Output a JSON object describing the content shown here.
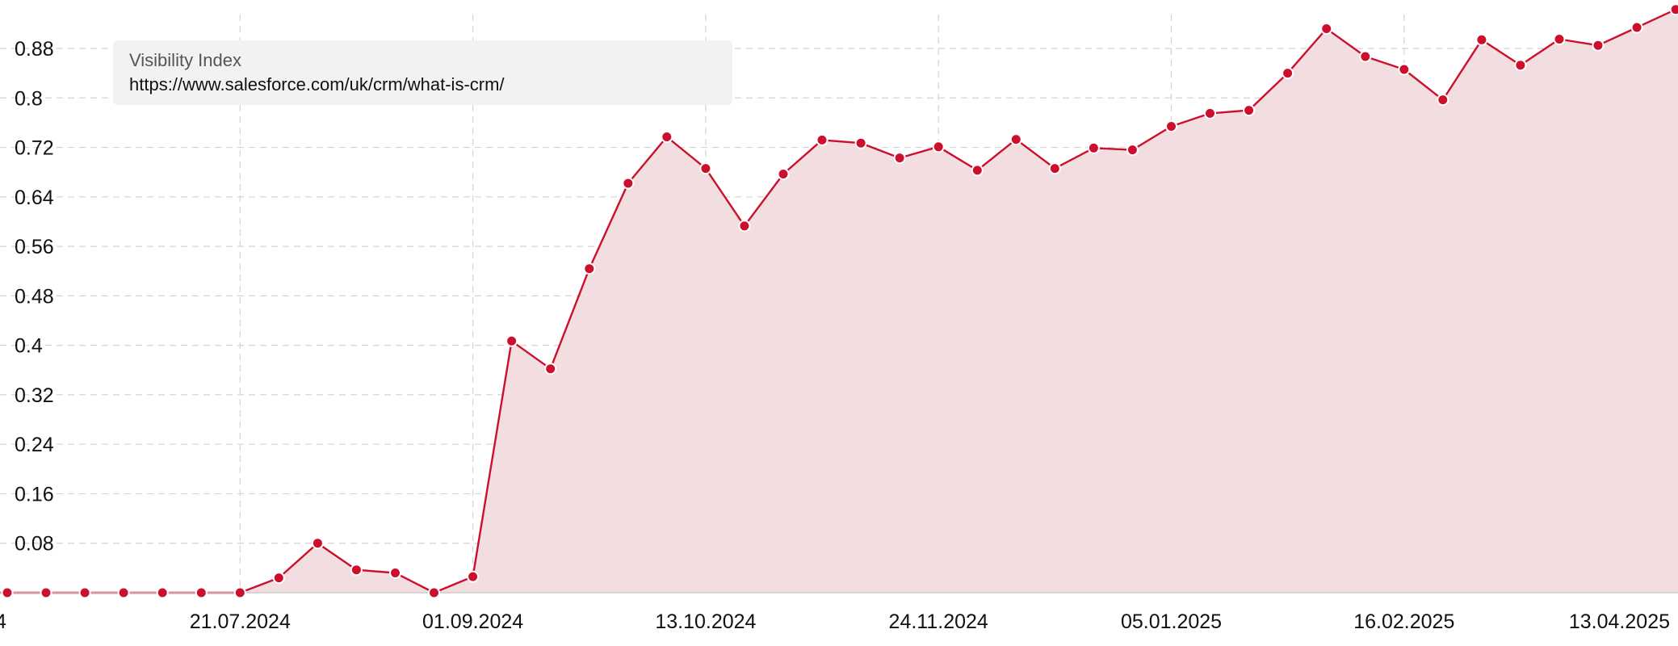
{
  "chart_data": {
    "type": "area",
    "ylim": [
      0,
      0.95
    ],
    "y_ticks": [
      "0.08",
      "0.16",
      "0.24",
      "0.32",
      "0.4",
      "0.48",
      "0.56",
      "0.64",
      "0.72",
      "0.8",
      "0.88"
    ],
    "x_ticks": [
      "21.07.2024",
      "01.09.2024",
      "13.10.2024",
      "24.11.2024",
      "05.01.2025",
      "16.02.2025",
      "13.04.2025"
    ],
    "x_cut_label": "4",
    "grid": true,
    "legend_placement": "top-left",
    "series": [
      {
        "name": "Visibility Index",
        "subtitle": "https://www.salesforce.com/uk/crm/what-is-crm/",
        "x": [
          "09.06.2024",
          "16.06.2024",
          "23.06.2024",
          "30.06.2024",
          "07.07.2024",
          "14.07.2024",
          "21.07.2024",
          "28.07.2024",
          "04.08.2024",
          "11.08.2024",
          "18.08.2024",
          "25.08.2024",
          "01.09.2024",
          "08.09.2024",
          "15.09.2024",
          "22.09.2024",
          "29.09.2024",
          "06.10.2024",
          "13.10.2024",
          "20.10.2024",
          "27.10.2024",
          "03.11.2024",
          "10.11.2024",
          "17.11.2024",
          "24.11.2024",
          "01.12.2024",
          "08.12.2024",
          "15.12.2024",
          "22.12.2024",
          "29.12.2024",
          "05.01.2025",
          "12.01.2025",
          "19.01.2025",
          "26.01.2025",
          "02.02.2025",
          "09.02.2025",
          "16.02.2025",
          "23.02.2025",
          "02.03.2025",
          "09.03.2025",
          "16.03.2025",
          "23.03.2025",
          "30.03.2025",
          "06.04.2025",
          "13.04.2025"
        ],
        "values": [
          0,
          0,
          0,
          0,
          0,
          0,
          0,
          0.024,
          0.08,
          0.037,
          0.032,
          0,
          0.026,
          0.407,
          0.362,
          0.524,
          0.662,
          0.737,
          0.686,
          0.593,
          0.677,
          0.732,
          0.727,
          0.703,
          0.721,
          0.683,
          0.733,
          0.686,
          0.719,
          0.716,
          0.754,
          0.775,
          0.78,
          0.84,
          0.912,
          0.867,
          0.846,
          0.797,
          0.894,
          0.853,
          0.895,
          0.885,
          0.914,
          0.943,
          0.97
        ]
      }
    ]
  },
  "colors": {
    "line": "#cc0f2c",
    "fill": "#f2dde0",
    "grid": "#d4d4d4",
    "axis": "#cccccc"
  }
}
